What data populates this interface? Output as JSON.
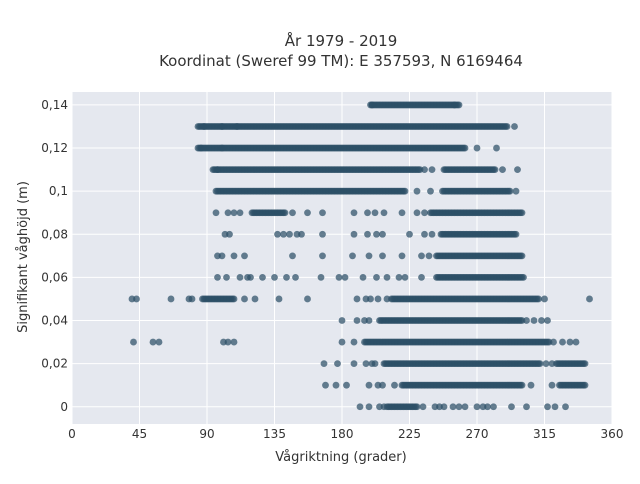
{
  "chart_data": {
    "type": "scatter",
    "title_line1": "År 1979 - 2019",
    "title_line2": "Koordinat (Sweref 99 TM): E 357593, N 6169464",
    "xlabel": "Vågriktning (grader)",
    "ylabel": "Signifikant våghöjd (m)",
    "xlim": [
      0,
      360
    ],
    "ylim": [
      -0.008,
      0.146
    ],
    "grid": true,
    "x_ticks": [
      0,
      45,
      90,
      135,
      180,
      225,
      270,
      315,
      360
    ],
    "x_tick_labels": [
      "0",
      "45",
      "90",
      "135",
      "180",
      "225",
      "270",
      "315",
      "360"
    ],
    "y_ticks": [
      0,
      0.02,
      0.04,
      0.06,
      0.08,
      0.1,
      0.12,
      0.14
    ],
    "y_tick_labels": [
      "0",
      "0,02",
      "0,04",
      "0,06",
      "0,08",
      "0,1",
      "0,12",
      "0,14"
    ],
    "colors": {
      "plot_bg": "#e5e8ef",
      "grid": "#ffffff",
      "marker": "#2d4f66"
    },
    "rows": [
      {
        "y": 0.14,
        "ranges": [
          [
            199,
            258
          ]
        ],
        "x": [
          200,
          255
        ]
      },
      {
        "y": 0.13,
        "ranges": [
          [
            84,
            290
          ]
        ],
        "x": [
          88,
          100,
          110,
          295
        ]
      },
      {
        "y": 0.12,
        "ranges": [
          [
            84,
            262
          ]
        ],
        "x": [
          86,
          100,
          270,
          283
        ]
      },
      {
        "y": 0.11,
        "ranges": [
          [
            94,
            232
          ],
          [
            248,
            282
          ]
        ],
        "x": [
          97,
          235,
          240,
          287,
          297
        ]
      },
      {
        "y": 0.1,
        "ranges": [
          [
            96,
            222
          ],
          [
            248,
            292
          ]
        ],
        "x": [
          230,
          239,
          247,
          296
        ]
      },
      {
        "y": 0.09,
        "ranges": [
          [
            120,
            142
          ],
          [
            239,
            300
          ]
        ],
        "x": [
          96,
          104,
          108,
          112,
          147,
          157,
          167,
          188,
          197,
          202,
          208,
          220,
          230,
          235
        ]
      },
      {
        "y": 0.08,
        "ranges": [
          [
            246,
            296
          ]
        ],
        "x": [
          102,
          105,
          137,
          141,
          145,
          150,
          153,
          167,
          188,
          197,
          203,
          207,
          225,
          235,
          240
        ]
      },
      {
        "y": 0.07,
        "ranges": [
          [
            243,
            300
          ]
        ],
        "x": [
          97,
          100,
          108,
          115,
          147,
          167,
          187,
          198,
          207,
          220,
          233,
          238
        ]
      },
      {
        "y": 0.06,
        "ranges": [
          [
            243,
            301
          ]
        ],
        "x": [
          97,
          103,
          112,
          117,
          119,
          127,
          135,
          143,
          149,
          166,
          178,
          182,
          194,
          203,
          210,
          218,
          222,
          233
        ]
      },
      {
        "y": 0.05,
        "ranges": [
          [
            87,
            108
          ],
          [
            213,
            311
          ]
        ],
        "x": [
          40,
          43,
          66,
          78,
          80,
          115,
          122,
          138,
          157,
          190,
          196,
          199,
          204,
          210,
          315,
          345
        ]
      },
      {
        "y": 0.04,
        "ranges": [
          [
            205,
            300
          ]
        ],
        "x": [
          180,
          190,
          195,
          198,
          303,
          308,
          313,
          317
        ]
      },
      {
        "y": 0.03,
        "ranges": [
          [
            195,
            318
          ]
        ],
        "x": [
          41,
          54,
          58,
          101,
          104,
          108,
          180,
          188,
          321,
          327,
          332,
          336
        ]
      },
      {
        "y": 0.02,
        "ranges": [
          [
            208,
            312
          ],
          [
            323,
            342
          ]
        ],
        "x": [
          168,
          177,
          188,
          196,
          200,
          202,
          316,
          320
        ]
      },
      {
        "y": 0.01,
        "ranges": [
          [
            220,
            300
          ],
          [
            325,
            342
          ]
        ],
        "x": [
          169,
          176,
          183,
          198,
          204,
          207,
          215,
          306,
          320
        ]
      },
      {
        "y": 0.0,
        "ranges": [
          [
            210,
            230
          ]
        ],
        "x": [
          192,
          198,
          205,
          208,
          234,
          242,
          245,
          248,
          254,
          258,
          262,
          270,
          274,
          277,
          281,
          293,
          303,
          317,
          322,
          329
        ]
      }
    ]
  }
}
